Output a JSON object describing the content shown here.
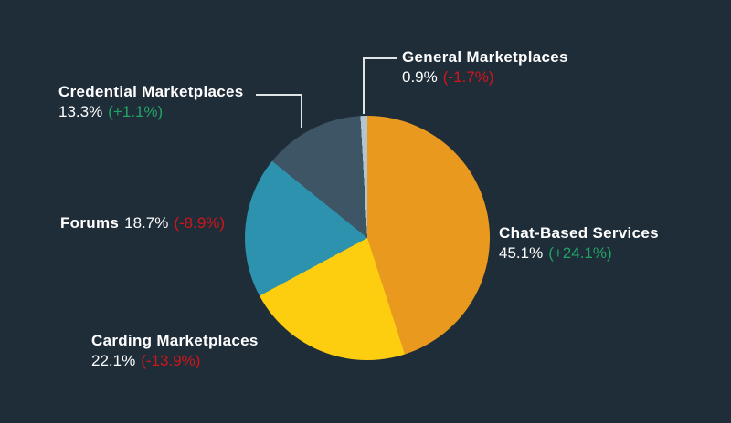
{
  "page": {
    "background": "#1F2D39"
  },
  "colors": {
    "text": "#FFFFFF",
    "positive": "#20A464",
    "negative": "#D11519",
    "connector": "#DFE4E7"
  },
  "chart_data": {
    "type": "pie",
    "direction": "clockwise",
    "start_angle_deg": 0,
    "unit": "%",
    "segments": [
      {
        "label": "Chat-Based Services",
        "value": 45.1,
        "value_label": "45.1%",
        "change_label": "(+24.1%)",
        "change_direction": "up",
        "color": "#E9991D"
      },
      {
        "label": "Carding Marketplaces",
        "value": 22.1,
        "value_label": "22.1%",
        "change_label": "(-13.9%)",
        "change_direction": "down",
        "color": "#FDCE10"
      },
      {
        "label": "Forums",
        "value": 18.7,
        "value_label": "18.7%",
        "change_label": "(-8.9%)",
        "change_direction": "down",
        "color": "#2C92AD"
      },
      {
        "label": "Credential Marketplaces",
        "value": 13.3,
        "value_label": "13.3%",
        "change_label": "(+1.1%)",
        "change_direction": "up",
        "color": "#3E5565"
      },
      {
        "label": "General Marketplaces",
        "value": 0.9,
        "value_label": "0.9%",
        "change_label": "(-1.7%)",
        "change_direction": "down",
        "color": "#B2C5D1"
      }
    ]
  }
}
